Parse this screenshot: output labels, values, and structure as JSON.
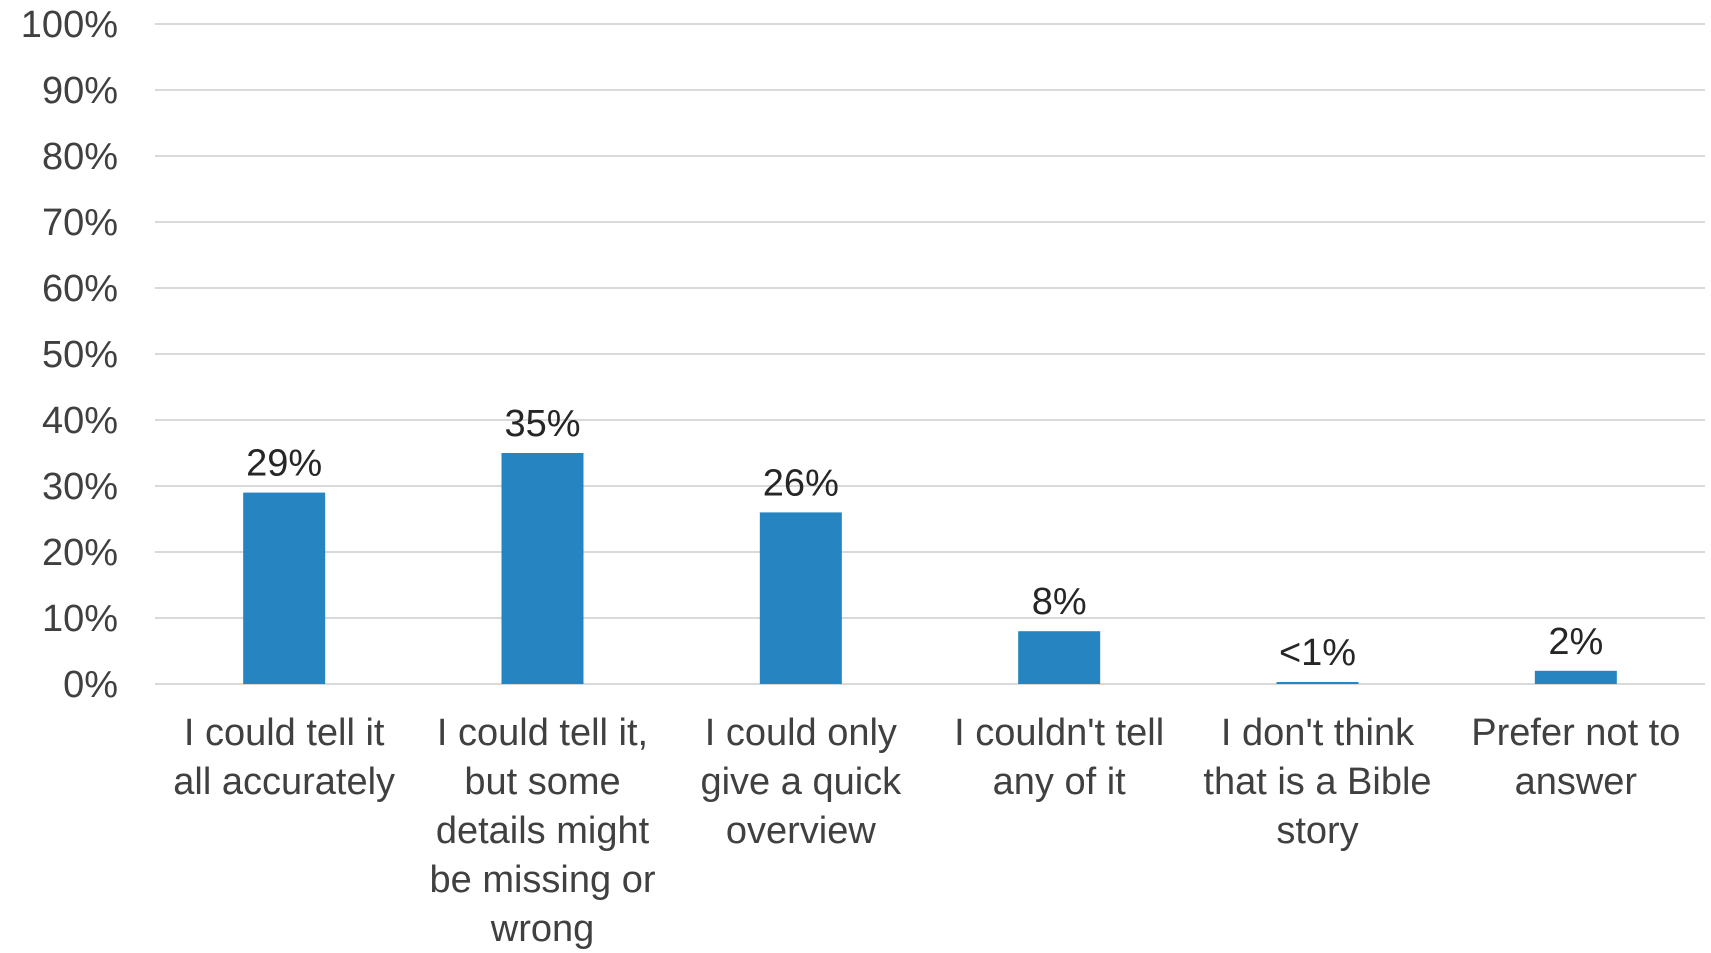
{
  "chart_data": {
    "type": "bar",
    "categories": [
      "I could tell it all accurately",
      "I could tell it, but some details might be missing or wrong",
      "I could only give a quick overview",
      "I couldn't tell any of it",
      "I don't think that is a Bible story",
      "Prefer not to answer"
    ],
    "values": [
      29,
      35,
      26,
      8,
      0.3,
      2
    ],
    "data_labels": [
      "29%",
      "35%",
      "26%",
      "8%",
      "<1%",
      "2%"
    ],
    "ylim": [
      0,
      100
    ],
    "yticks": [
      0,
      10,
      20,
      30,
      40,
      50,
      60,
      70,
      80,
      90,
      100
    ],
    "ytick_labels": [
      "0%",
      "10%",
      "20%",
      "30%",
      "40%",
      "50%",
      "60%",
      "70%",
      "80%",
      "90%",
      "100%"
    ],
    "grid": true,
    "legend": "none",
    "bar_color": "#2685c1"
  }
}
